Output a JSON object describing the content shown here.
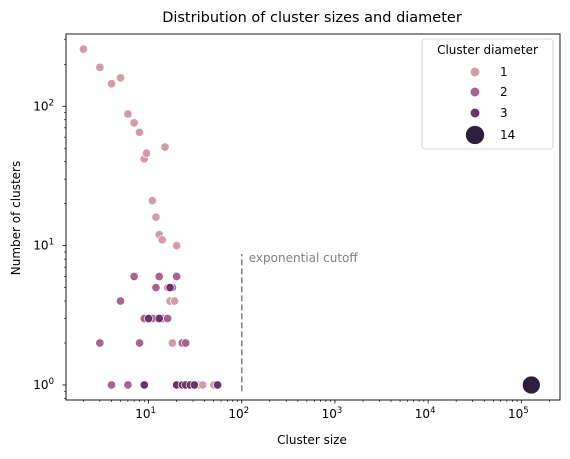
{
  "chart_data": {
    "type": "scatter",
    "title": "Distribution of cluster sizes and diameter",
    "xlabel": "Cluster size",
    "ylabel": "Number of clusters",
    "xscale": "log",
    "yscale": "log",
    "xlim": [
      1.3,
      260000
    ],
    "ylim": [
      0.78,
      330
    ],
    "x_ticks": [
      {
        "value": 10,
        "base": "10",
        "exp": "1"
      },
      {
        "value": 100,
        "base": "10",
        "exp": "2"
      },
      {
        "value": 1000,
        "base": "10",
        "exp": "3"
      },
      {
        "value": 10000,
        "base": "10",
        "exp": "4"
      },
      {
        "value": 100000,
        "base": "10",
        "exp": "5"
      }
    ],
    "y_ticks": [
      {
        "value": 1,
        "base": "10",
        "exp": "0"
      },
      {
        "value": 10,
        "base": "10",
        "exp": "1"
      },
      {
        "value": 100,
        "base": "10",
        "exp": "2"
      }
    ],
    "grid": false,
    "legend": {
      "title": "Cluster diameter",
      "placement": "top-right",
      "entries": [
        {
          "label": "1",
          "color": "#d59ba7",
          "size": "small"
        },
        {
          "label": "2",
          "color": "#a8638f",
          "size": "small"
        },
        {
          "label": "3",
          "color": "#6a3468",
          "size": "small"
        },
        {
          "label": "14",
          "color": "#2d1e3e",
          "size": "large"
        }
      ]
    },
    "annotation": {
      "text": "exponential cutoff",
      "x": 100,
      "y_range": [
        0.9,
        8.7
      ],
      "color": "#808080",
      "linestyle": "dashed"
    },
    "series": [
      {
        "diameter": 1,
        "color": "#d59ba7",
        "points": [
          [
            2,
            257
          ],
          [
            3,
            190
          ],
          [
            4,
            145
          ],
          [
            5,
            160
          ],
          [
            6,
            88
          ],
          [
            7,
            76
          ],
          [
            8,
            65
          ],
          [
            9,
            42
          ],
          [
            9.5,
            46
          ],
          [
            11,
            21
          ],
          [
            12,
            16
          ],
          [
            13,
            12
          ],
          [
            14,
            11
          ],
          [
            15,
            51
          ],
          [
            16,
            5
          ],
          [
            17,
            4
          ],
          [
            19,
            4
          ],
          [
            20,
            10
          ],
          [
            18,
            2
          ],
          [
            21,
            1
          ],
          [
            22,
            1
          ],
          [
            24,
            1
          ],
          [
            26,
            1
          ],
          [
            30,
            1
          ],
          [
            33,
            1
          ],
          [
            35,
            1
          ],
          [
            38,
            1
          ],
          [
            50,
            1
          ]
        ]
      },
      {
        "diameter": 2,
        "color": "#a8638f",
        "points": [
          [
            3,
            2
          ],
          [
            4,
            1
          ],
          [
            5,
            4
          ],
          [
            6,
            1
          ],
          [
            7,
            6
          ],
          [
            8,
            2
          ],
          [
            9,
            3
          ],
          [
            11,
            3
          ],
          [
            12,
            5
          ],
          [
            13,
            6
          ],
          [
            14,
            3
          ],
          [
            16,
            3
          ],
          [
            18,
            5
          ],
          [
            20,
            6
          ],
          [
            23,
            2
          ],
          [
            25,
            2
          ]
        ]
      },
      {
        "diameter": 3,
        "color": "#6a3468",
        "points": [
          [
            9,
            1
          ],
          [
            10,
            3
          ],
          [
            13,
            3
          ],
          [
            17,
            5
          ],
          [
            20,
            1
          ],
          [
            23,
            1
          ],
          [
            25,
            1
          ],
          [
            28,
            1
          ],
          [
            31,
            1
          ],
          [
            55,
            1
          ]
        ]
      },
      {
        "diameter": 14,
        "color": "#2d1e3e",
        "points": [
          [
            128000,
            1
          ]
        ]
      }
    ]
  }
}
